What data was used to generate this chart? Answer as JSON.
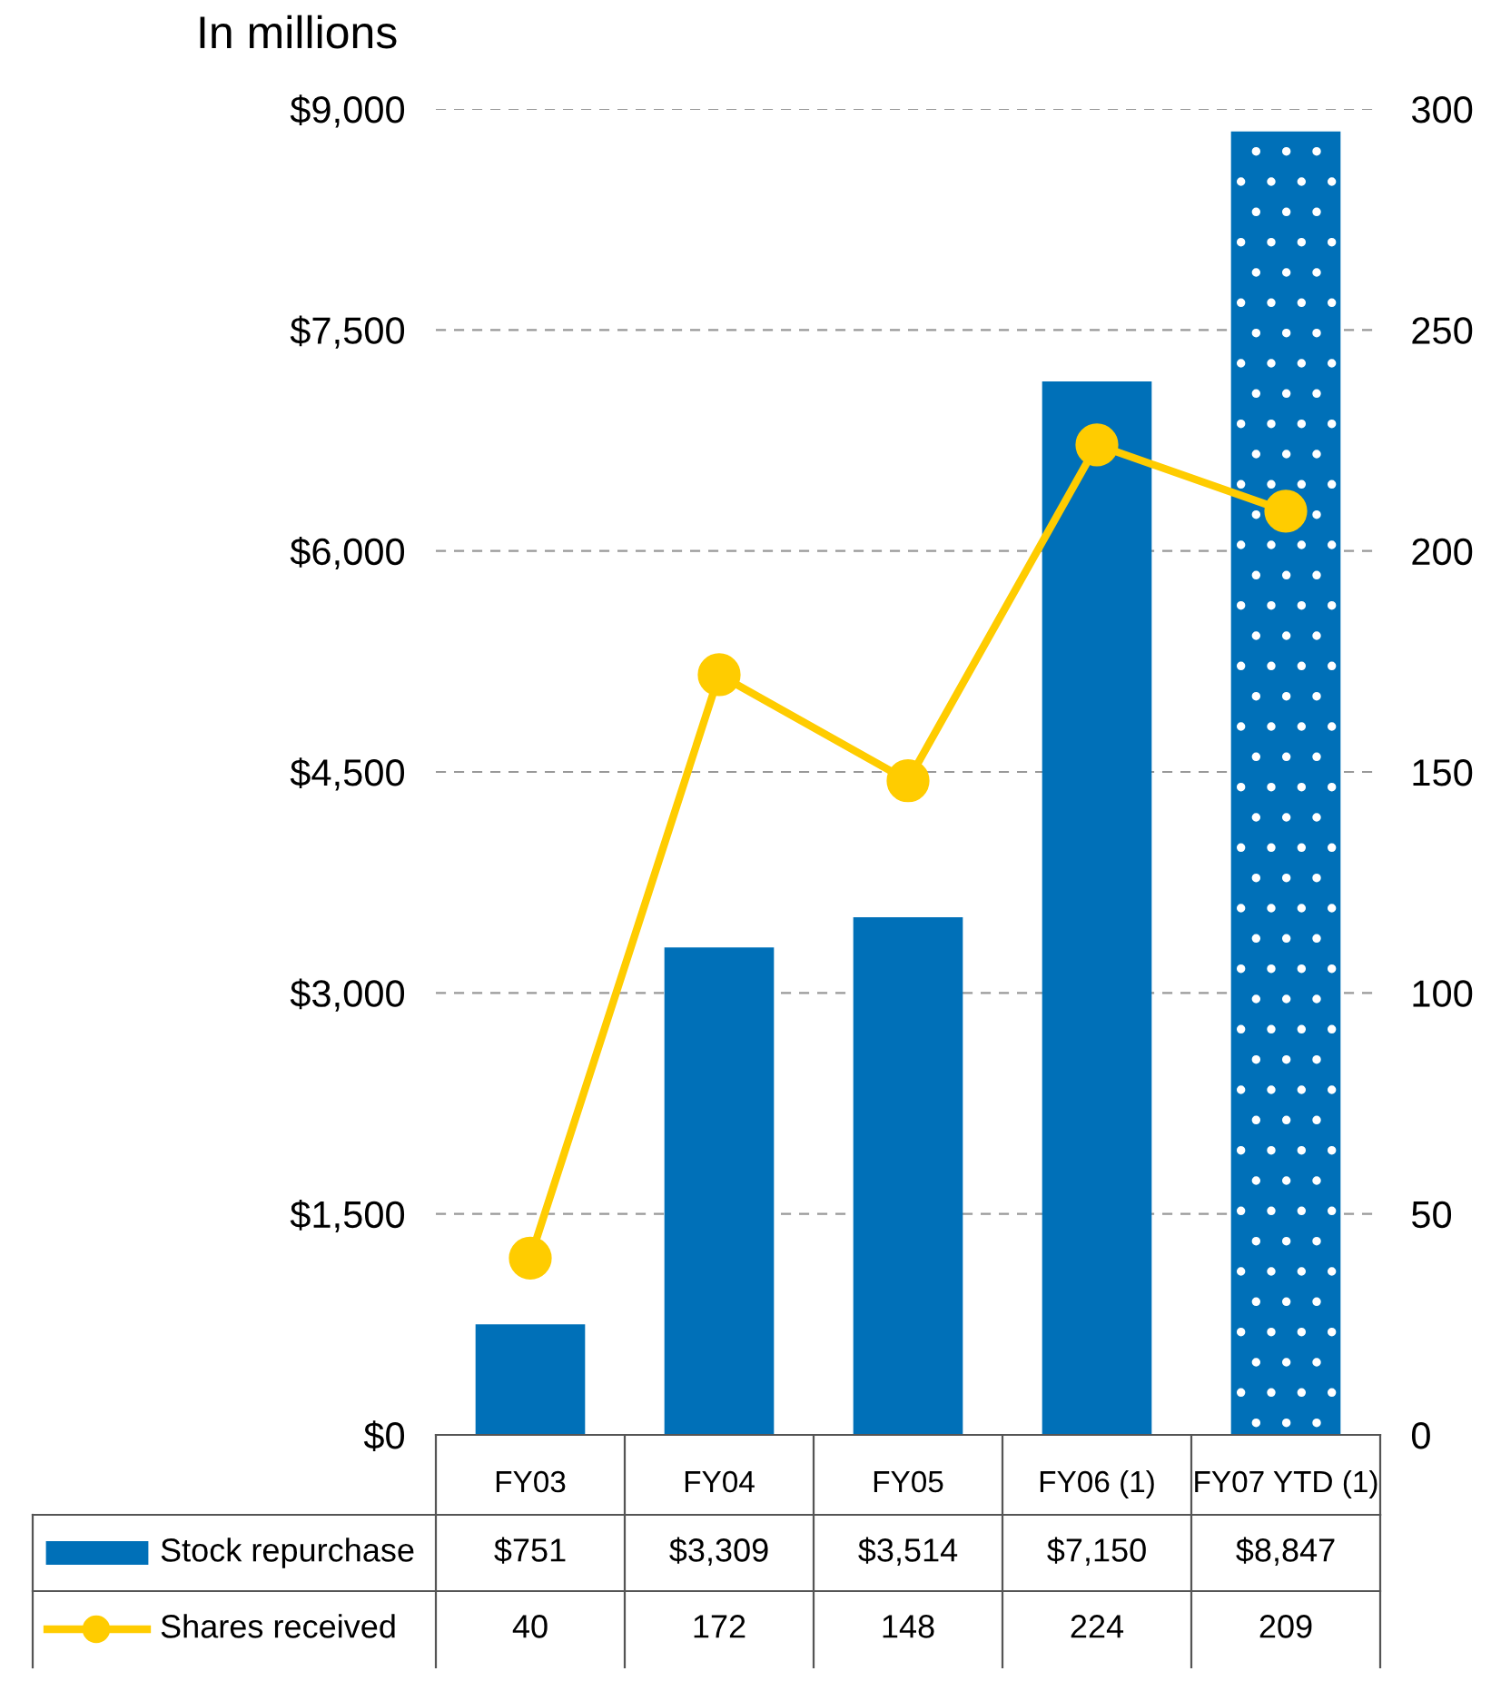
{
  "chart_data": {
    "type": "bar",
    "ylabel": "In millions",
    "categories": [
      "FY03",
      "FY04",
      "FY05",
      "FY06 (1)",
      "FY07 YTD (1)"
    ],
    "series": [
      {
        "name": "Stock repurchase",
        "color": "#0070b8",
        "values": [
          751,
          3309,
          3514,
          7150,
          8847
        ],
        "value_labels": [
          "$751",
          "$3,309",
          "$3,514",
          "$7,150",
          "$8,847"
        ]
      },
      {
        "name": "Shares received",
        "type": "line",
        "axis": "y2",
        "color": "#ffcc00",
        "marker": "circle",
        "values": [
          40,
          172,
          148,
          224,
          209
        ],
        "value_labels": [
          "40",
          "172",
          "148",
          "224",
          "209"
        ]
      }
    ],
    "ylim": [
      0,
      9000
    ],
    "yticks": [
      {
        "value": 0,
        "label": "$0"
      },
      {
        "value": 1500,
        "label": "$1,500"
      },
      {
        "value": 3000,
        "label": "$3,000"
      },
      {
        "value": 4500,
        "label": "$4,500"
      },
      {
        "value": 6000,
        "label": "$6,000"
      },
      {
        "value": 7500,
        "label": "$7,500"
      },
      {
        "value": 9000,
        "label": "$9,000"
      }
    ],
    "y2lim": [
      0,
      300
    ],
    "y2ticks": [
      0,
      50,
      100,
      150,
      200,
      250,
      300
    ],
    "grid": "y",
    "legend": "bottom"
  }
}
